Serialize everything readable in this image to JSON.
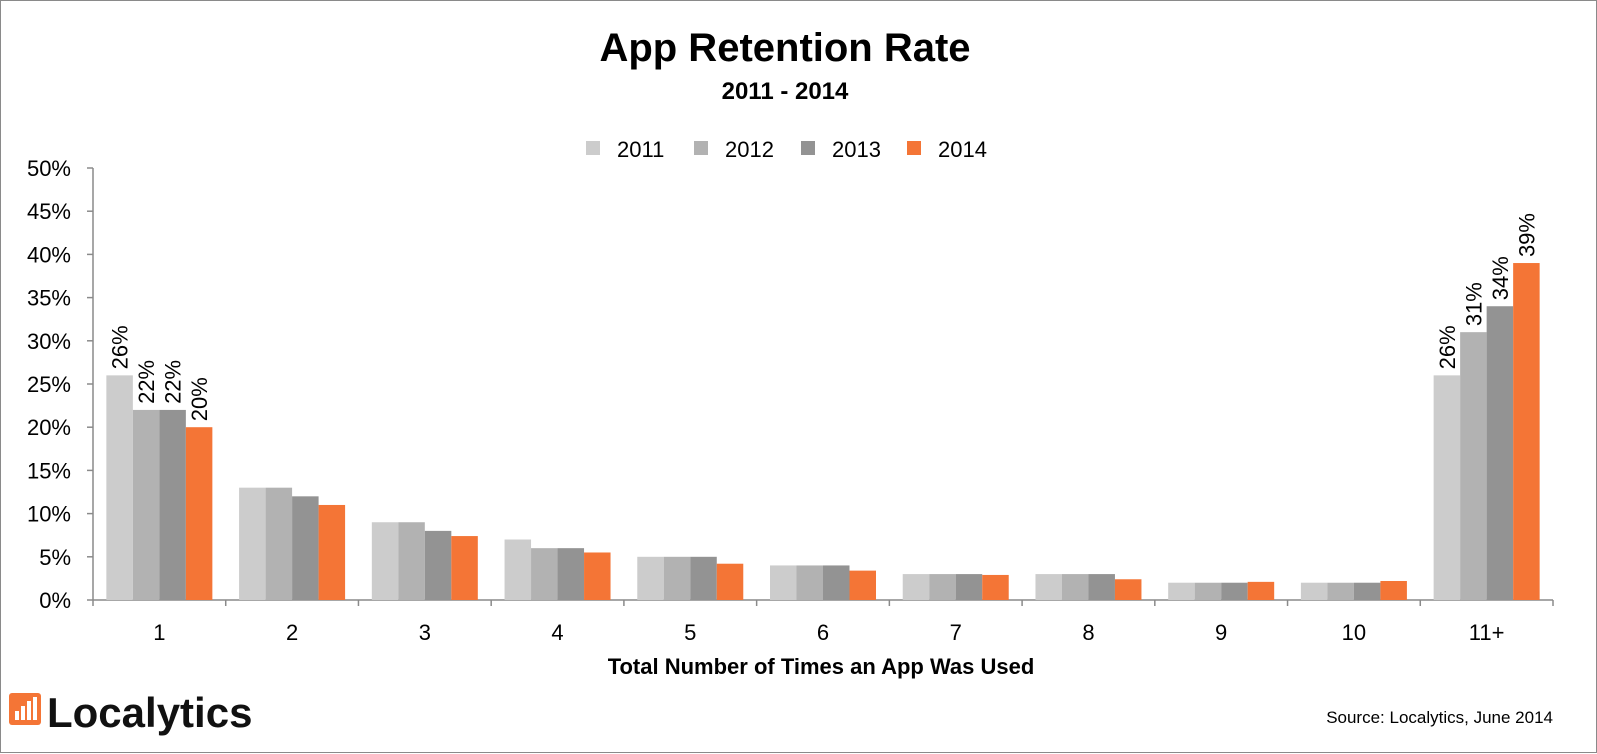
{
  "chart_data": {
    "type": "bar",
    "title": "App Retention Rate",
    "subtitle": "2011 - 2014",
    "xlabel": "Total Number of Times an App Was Used",
    "ylabel": "",
    "ylim": [
      0,
      50
    ],
    "yticks": [
      "0%",
      "5%",
      "10%",
      "15%",
      "20%",
      "25%",
      "30%",
      "35%",
      "40%",
      "45%",
      "50%"
    ],
    "grid": false,
    "legend_position": "top-center",
    "categories": [
      "1",
      "2",
      "3",
      "4",
      "5",
      "6",
      "7",
      "8",
      "9",
      "10",
      "11+"
    ],
    "series": [
      {
        "name": "2011",
        "color": "#cccccc",
        "values": [
          26,
          13,
          9,
          7,
          5,
          4,
          3,
          3,
          2,
          2,
          26
        ]
      },
      {
        "name": "2012",
        "color": "#b2b2b2",
        "values": [
          22,
          13,
          9,
          6,
          5,
          4,
          3,
          3,
          2,
          2,
          31
        ]
      },
      {
        "name": "2013",
        "color": "#939393",
        "values": [
          22,
          12,
          8,
          6,
          5,
          4,
          3,
          3,
          2,
          2,
          34
        ]
      },
      {
        "name": "2014",
        "color": "#f47536",
        "values": [
          20,
          11,
          7.4,
          5.5,
          4.2,
          3.4,
          2.9,
          2.4,
          2.1,
          2.2,
          39
        ]
      }
    ],
    "data_labels": [
      {
        "category": "1",
        "series": "2011",
        "text": "26%"
      },
      {
        "category": "1",
        "series": "2012",
        "text": "22%"
      },
      {
        "category": "1",
        "series": "2013",
        "text": "22%"
      },
      {
        "category": "1",
        "series": "2014",
        "text": "20%"
      },
      {
        "category": "11+",
        "series": "2011",
        "text": "26%"
      },
      {
        "category": "11+",
        "series": "2012",
        "text": "31%"
      },
      {
        "category": "11+",
        "series": "2013",
        "text": "34%"
      },
      {
        "category": "11+",
        "series": "2014",
        "text": "39%"
      }
    ]
  },
  "brand": {
    "name": "Localytics",
    "logo_icon": "bar-chart-logo-icon",
    "logo_color": "#f47536"
  },
  "source": "Source: Localytics, June 2014"
}
